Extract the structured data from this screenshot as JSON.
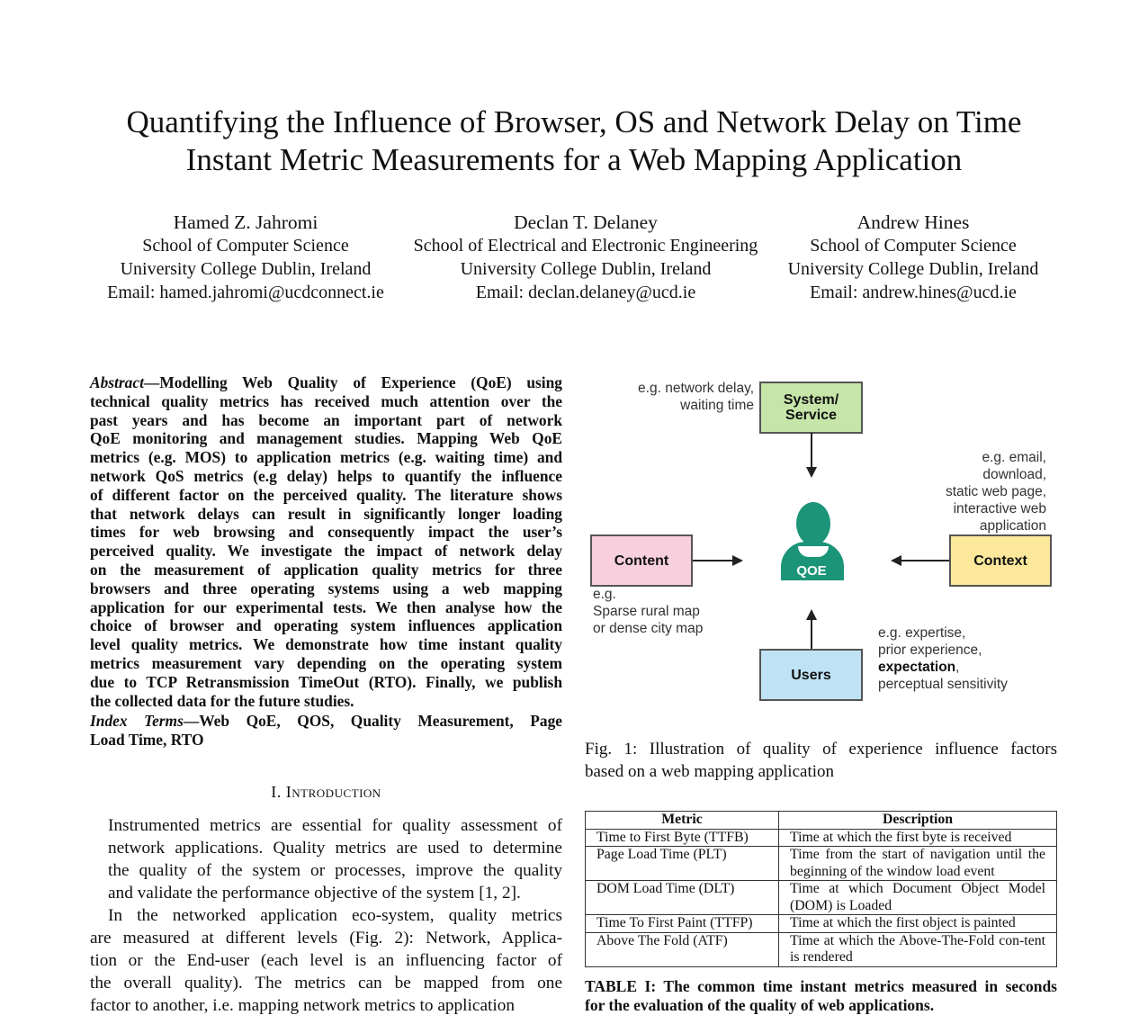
{
  "title": [
    "Quantifying the Influence of Browser, OS and Network Delay on Time",
    "Instant Metric Measurements for a Web Mapping Application"
  ],
  "authors": [
    {
      "name": "Hamed Z. Jahromi",
      "dept": "School of Computer Science",
      "univ": "University College Dublin, Ireland",
      "email": "Email: hamed.jahromi@ucdconnect.ie"
    },
    {
      "name": "Declan T. Delaney",
      "dept": "School of Electrical and Electronic Engineering",
      "univ": "University College Dublin, Ireland",
      "email": "Email: declan.delaney@ucd.ie"
    },
    {
      "name": "Andrew Hines",
      "dept": "School of Computer Science",
      "univ": "University College Dublin, Ireland",
      "email": "Email: andrew.hines@ucd.ie"
    }
  ],
  "abstract": {
    "label": "Abstract",
    "lines": [
      "—Modelling Web Quality of Experience (QoE) using",
      "technical quality metrics has received much attention over the",
      "past years and has become an important part of network",
      "QoE monitoring and management studies. Mapping Web QoE",
      "metrics (e.g. MOS) to application metrics (e.g. waiting time) and",
      "network QoS metrics (e.g delay) helps to quantify the influence",
      "of different factor on the perceived quality. The literature shows",
      "that network delays can result in significantly longer loading",
      "times for web browsing and consequently impact the user’s",
      "perceived quality. We investigate the impact of network delay",
      "on the measurement of application quality metrics for three",
      "browsers and three operating systems using a web mapping",
      "application for our experimental tests. We then analyse how the",
      "choice of browser and operating system influences application",
      "level quality metrics. We demonstrate how time instant quality",
      "metrics measurement vary depending on the operating system",
      "due to TCP Retransmission TimeOut (RTO). Finally, we publish",
      "the collected data for the future studies."
    ]
  },
  "index_terms": {
    "label": "Index Terms",
    "lines": [
      "—Web QoE, QOS, Quality Measurement, Page",
      "Load Time, RTO"
    ]
  },
  "section": {
    "number": "I.",
    "title": "Introduction"
  },
  "intro": {
    "p1": [
      "Instrumented metrics are essential for quality assessment of",
      "network applications. Quality metrics are used to determine",
      "the quality of the system or processes, improve the quality",
      "and validate the performance objective of the system [1, 2]."
    ],
    "p2": [
      "In the networked application eco-system, quality metrics",
      "are measured at different levels (Fig. 2): Network, Applica-",
      "tion or the End-user (each level is an influencing factor of",
      "the overall quality). The metrics can be mapped from one",
      "factor to another, i.e. mapping network metrics to application"
    ]
  },
  "figure": {
    "system": [
      "System/",
      "Service"
    ],
    "system_note": [
      "e.g. network  delay,",
      "waiting time"
    ],
    "content": "Content",
    "content_note": [
      "e.g.",
      "Sparse rural map",
      "or dense city map"
    ],
    "context": "Context",
    "context_note": [
      "e.g. email,",
      "download,",
      "static web page,",
      "interactive web",
      "application"
    ],
    "users": "Users",
    "users_note": [
      "e.g.  expertise,",
      "prior experience,"
    ],
    "users_note_bold": "expectation",
    "users_note_end": [
      "perceptual sensitivity"
    ],
    "qoe": "QOE",
    "colors": {
      "system": "#c6e5a8",
      "content": "#f8cfdc",
      "context": "#fbe89b",
      "users": "#bfe2f5",
      "qoe": "#1b9478"
    },
    "caption": [
      "Fig. 1: Illustration of quality of experience influence factors",
      "based on a web mapping application"
    ]
  },
  "table": {
    "headers": [
      "Metric",
      "Description"
    ],
    "rows": [
      [
        "Time to First Byte (TTFB)",
        "Time at which the first byte is received"
      ],
      [
        "Page Load Time (PLT)",
        "Time from the start of navigation until the beginning of the window load event"
      ],
      [
        "DOM Load Time (DLT)",
        "Time at which Document Object Model (DOM) is Loaded"
      ],
      [
        "Time To First Paint (TTFP)",
        "Time at which the first object is painted"
      ],
      [
        "Above The Fold (ATF)",
        "Time at which the Above-The-Fold con-tent is rendered"
      ]
    ],
    "caption": [
      "TABLE I: The common time instant metrics measured in seconds",
      "for the evaluation of the quality of web applications."
    ]
  }
}
